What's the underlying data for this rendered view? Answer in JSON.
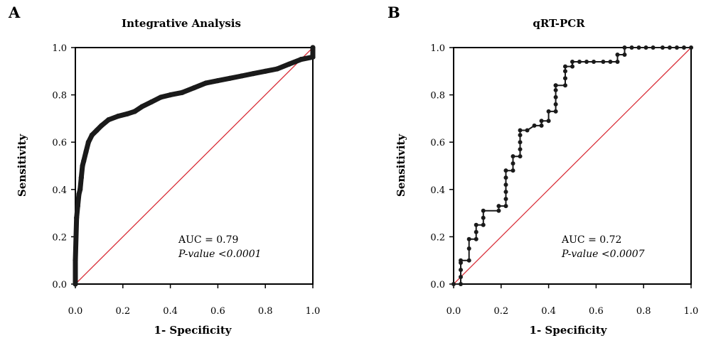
{
  "chart_data": [
    {
      "type": "line",
      "panel_letter": "A",
      "title": "Integrative Analysis",
      "xlabel": "1- Specificity",
      "ylabel": "Sensitivity",
      "xlim": [
        0,
        1
      ],
      "ylim": [
        0,
        1
      ],
      "x_ticks": [
        "0.0",
        "0.2",
        "0.4",
        "0.6",
        "0.8",
        "1.0"
      ],
      "y_ticks": [
        "0.0",
        "0.2",
        "0.4",
        "0.6",
        "0.8",
        "1.0"
      ],
      "grid": false,
      "reference_line": {
        "x": [
          0,
          1
        ],
        "y": [
          0,
          1
        ],
        "color": "#d9303a"
      },
      "annotation_auc": "AUC = 0.79",
      "annotation_p": "P-value <0.0001",
      "series": [
        {
          "color": "#1a1a1a",
          "style": "dense-markers",
          "x": [
            0.0,
            0.0,
            0.005,
            0.01,
            0.015,
            0.02,
            0.025,
            0.03,
            0.035,
            0.045,
            0.055,
            0.07,
            0.09,
            0.11,
            0.14,
            0.18,
            0.22,
            0.25,
            0.28,
            0.32,
            0.36,
            0.4,
            0.45,
            0.5,
            0.55,
            0.6,
            0.65,
            0.7,
            0.75,
            0.8,
            0.85,
            0.9,
            0.95,
            1.0,
            1.0
          ],
          "y": [
            0.0,
            0.1,
            0.28,
            0.33,
            0.38,
            0.4,
            0.45,
            0.5,
            0.52,
            0.56,
            0.6,
            0.63,
            0.65,
            0.67,
            0.695,
            0.71,
            0.72,
            0.73,
            0.75,
            0.77,
            0.79,
            0.8,
            0.81,
            0.83,
            0.85,
            0.86,
            0.87,
            0.88,
            0.89,
            0.9,
            0.91,
            0.93,
            0.95,
            0.96,
            1.0
          ]
        }
      ]
    },
    {
      "type": "line",
      "panel_letter": "B",
      "title": "qRT-PCR",
      "xlabel": "1- Specificity",
      "ylabel": "Sensitivity",
      "xlim": [
        0,
        1
      ],
      "ylim": [
        0,
        1
      ],
      "x_ticks": [
        "0.0",
        "0.2",
        "0.4",
        "0.6",
        "0.8",
        "1.0"
      ],
      "y_ticks": [
        "0.0",
        "0.2",
        "0.4",
        "0.6",
        "0.8",
        "1.0"
      ],
      "grid": false,
      "reference_line": {
        "x": [
          0,
          1
        ],
        "y": [
          0,
          1
        ],
        "color": "#d9303a"
      },
      "annotation_auc": "AUC = 0.72",
      "annotation_p": "P-value <0.0007",
      "series": [
        {
          "color": "#1a1a1a",
          "style": "step-markers",
          "x": [
            0.0,
            0.03,
            0.03,
            0.03,
            0.03,
            0.03,
            0.065,
            0.065,
            0.065,
            0.095,
            0.095,
            0.095,
            0.125,
            0.125,
            0.125,
            0.19,
            0.19,
            0.22,
            0.22,
            0.22,
            0.22,
            0.22,
            0.22,
            0.25,
            0.25,
            0.25,
            0.28,
            0.28,
            0.28,
            0.28,
            0.28,
            0.31,
            0.34,
            0.37,
            0.37,
            0.4,
            0.4,
            0.43,
            0.43,
            0.43,
            0.43,
            0.43,
            0.43,
            0.47,
            0.47,
            0.47,
            0.47,
            0.5,
            0.5,
            0.53,
            0.56,
            0.59,
            0.63,
            0.66,
            0.69,
            0.69,
            0.72,
            0.72,
            0.75,
            0.78,
            0.81,
            0.84,
            0.88,
            0.91,
            0.94,
            0.97,
            1.0
          ],
          "y": [
            0.0,
            0.0,
            0.03,
            0.06,
            0.09,
            0.1,
            0.1,
            0.15,
            0.19,
            0.19,
            0.22,
            0.25,
            0.25,
            0.28,
            0.31,
            0.31,
            0.33,
            0.33,
            0.36,
            0.39,
            0.42,
            0.45,
            0.48,
            0.48,
            0.51,
            0.54,
            0.54,
            0.57,
            0.6,
            0.63,
            0.65,
            0.65,
            0.67,
            0.67,
            0.69,
            0.69,
            0.73,
            0.73,
            0.76,
            0.79,
            0.82,
            0.84,
            0.84,
            0.84,
            0.87,
            0.9,
            0.92,
            0.92,
            0.94,
            0.94,
            0.94,
            0.94,
            0.94,
            0.94,
            0.94,
            0.97,
            0.97,
            1.0,
            1.0,
            1.0,
            1.0,
            1.0,
            1.0,
            1.0,
            1.0,
            1.0,
            1.0
          ]
        }
      ]
    }
  ]
}
